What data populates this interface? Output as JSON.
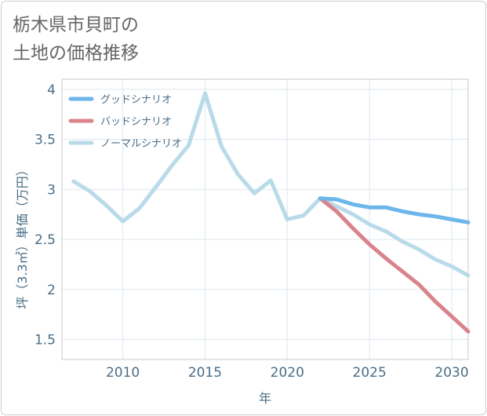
{
  "title_line1": "栃木県市貝町の",
  "title_line2": "土地の価格推移",
  "chart_data": {
    "type": "line",
    "xlabel": "年",
    "ylabel": "坪（3.3㎡）単価（万円）",
    "xlim": [
      2006.3,
      2031
    ],
    "ylim": [
      1.3,
      4.1
    ],
    "xticks": [
      2010,
      2015,
      2020,
      2025,
      2030
    ],
    "yticks": [
      1.5,
      2,
      2.5,
      3,
      3.5,
      4
    ],
    "grid": true,
    "legend_position": "top-left",
    "series": [
      {
        "name": "グッドシナリオ",
        "color": "#6cb6ea",
        "x": [
          2022,
          2023,
          2024,
          2025,
          2026,
          2027,
          2028,
          2029,
          2030,
          2031
        ],
        "y": [
          2.91,
          2.9,
          2.85,
          2.82,
          2.82,
          2.78,
          2.75,
          2.73,
          2.7,
          2.67
        ]
      },
      {
        "name": "バッドシナリオ",
        "color": "#d9848c",
        "x": [
          2022,
          2023,
          2024,
          2025,
          2026,
          2027,
          2028,
          2029,
          2030,
          2031
        ],
        "y": [
          2.91,
          2.78,
          2.61,
          2.45,
          2.31,
          2.18,
          2.05,
          1.88,
          1.73,
          1.58
        ]
      },
      {
        "name": "ノーマルシナリオ",
        "color": "#b9dbe9",
        "x": [
          2007,
          2008,
          2009,
          2010,
          2011,
          2012,
          2013,
          2014,
          2015,
          2016,
          2017,
          2018,
          2019,
          2020,
          2021,
          2022,
          2023,
          2024,
          2025,
          2026,
          2027,
          2028,
          2029,
          2030,
          2031
        ],
        "y": [
          3.08,
          2.98,
          2.84,
          2.68,
          2.81,
          3.02,
          3.24,
          3.44,
          3.96,
          3.43,
          3.15,
          2.96,
          3.09,
          2.7,
          2.74,
          2.91,
          2.83,
          2.75,
          2.65,
          2.58,
          2.48,
          2.4,
          2.3,
          2.23,
          2.14
        ]
      }
    ]
  }
}
